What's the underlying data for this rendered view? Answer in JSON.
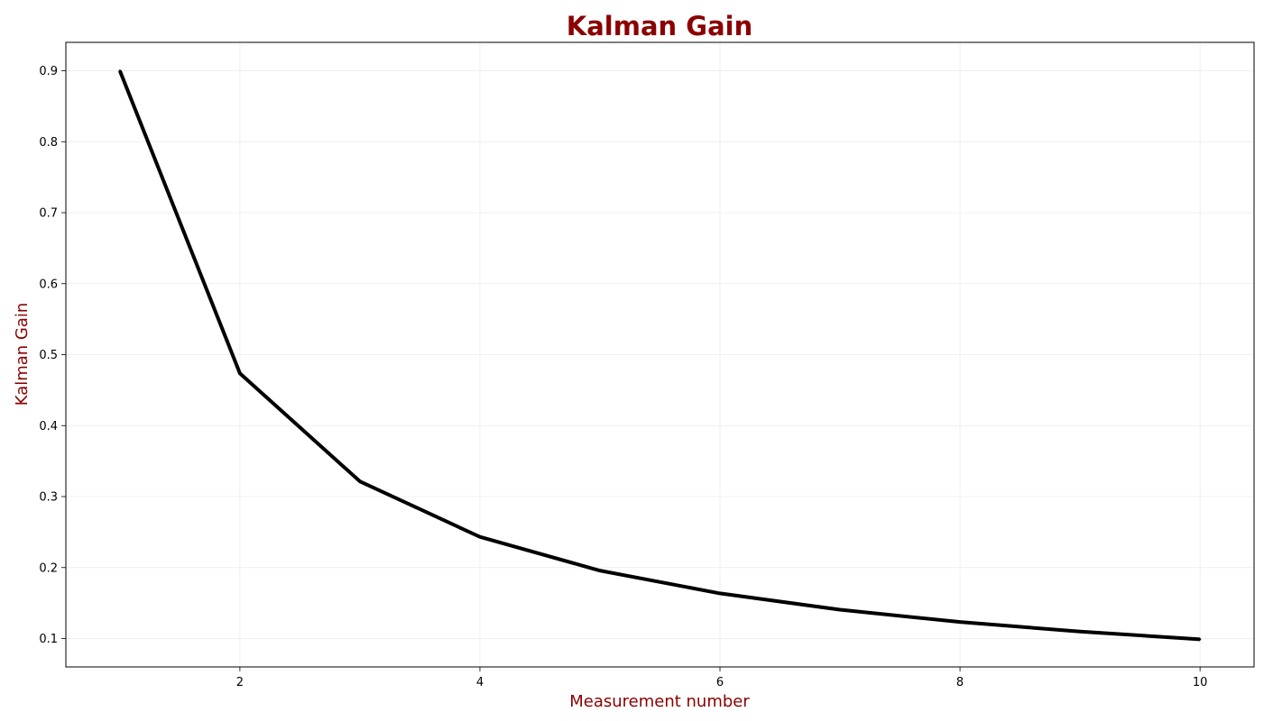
{
  "chart_data": {
    "type": "line",
    "title": "Kalman Gain",
    "xlabel": "Measurement number",
    "ylabel": "Kalman Gain",
    "xlim": [
      0.55,
      10.45
    ],
    "ylim": [
      0.06,
      0.94
    ],
    "xticks": [
      2,
      4,
      6,
      8,
      10
    ],
    "xtick_labels": [
      "2",
      "4",
      "6",
      "8",
      "10"
    ],
    "yticks": [
      0.1,
      0.2,
      0.3,
      0.4,
      0.5,
      0.6,
      0.7,
      0.8,
      0.9
    ],
    "ytick_labels": [
      "0.1",
      "0.2",
      "0.3",
      "0.4",
      "0.5",
      "0.6",
      "0.7",
      "0.8",
      "0.9"
    ],
    "grid": true,
    "series": [
      {
        "x": [
          1,
          2,
          3,
          4,
          5,
          6,
          7,
          8,
          9,
          10
        ],
        "values": [
          0.9,
          0.4737,
          0.3214,
          0.2432,
          0.1957,
          0.1636,
          0.1406,
          0.1233,
          0.1098,
          0.0989
        ],
        "color": "#000000"
      }
    ],
    "colors": {
      "title": "#8b0000",
      "axis_label": "#8b0000",
      "line": "#000000",
      "grid": "#ebebeb"
    }
  }
}
